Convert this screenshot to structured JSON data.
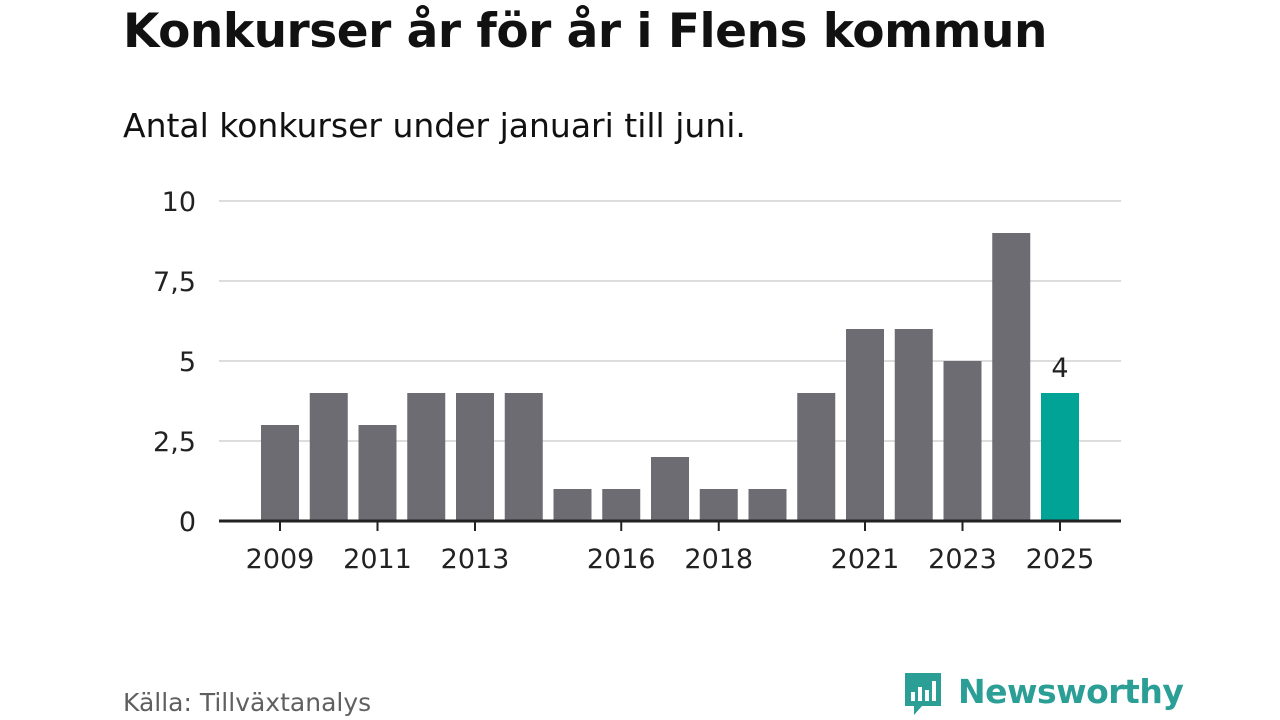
{
  "title": "Konkurser år för år i Flens kommun",
  "subtitle": "Antal konkurser under januari till juni.",
  "source": "Källa: Tillväxtanalys",
  "brand": {
    "name": "Newsworthy",
    "icon": "newsworthy-logo-icon",
    "color": "#2b9e96"
  },
  "colors": {
    "bar": "#6d6c72",
    "highlight": "#00a396",
    "grid": "#dddddd",
    "axis": "#222222"
  },
  "chart_data": {
    "type": "bar",
    "title": "Konkurser år för år i Flens kommun",
    "subtitle": "Antal konkurser under januari till juni.",
    "xlabel": "",
    "ylabel": "",
    "categories": [
      "2009",
      "2010",
      "2011",
      "2012",
      "2013",
      "2014",
      "2015",
      "2016",
      "2017",
      "2018",
      "2019",
      "2020",
      "2021",
      "2022",
      "2023",
      "2024",
      "2025"
    ],
    "values": [
      3,
      4,
      3,
      4,
      4,
      4,
      1,
      1,
      2,
      1,
      1,
      4,
      6,
      6,
      5,
      9,
      4
    ],
    "x_tick_labels": [
      "2009",
      "2011",
      "2013",
      "2016",
      "2018",
      "2021",
      "2023",
      "2025"
    ],
    "y_ticks": [
      0,
      2.5,
      5,
      7.5,
      10
    ],
    "y_tick_labels": [
      "0",
      "2,5",
      "5",
      "7,5",
      "10"
    ],
    "ylim": [
      0,
      10
    ],
    "grid": true,
    "highlight": {
      "category": "2025",
      "label": "4"
    }
  }
}
